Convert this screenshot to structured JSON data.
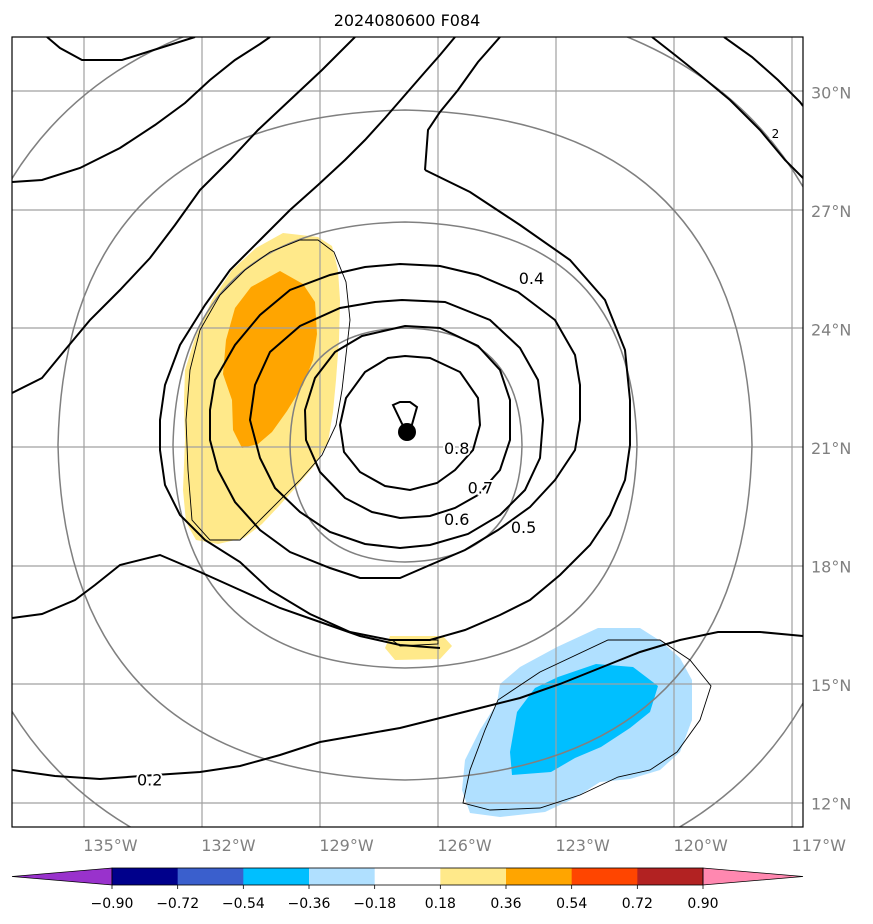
{
  "title": "2024080600 F084",
  "chart_data": {
    "type": "contour-map",
    "title": "2024080600 F084",
    "center_marker": {
      "lon": -126.0,
      "lat": 21.4
    },
    "lon_range": [
      -137.5,
      -117.4
    ],
    "lat_range": [
      11.4,
      31.4
    ],
    "lon_ticks": [
      {
        "value": -135,
        "label": "135°W"
      },
      {
        "value": -132,
        "label": "132°W"
      },
      {
        "value": -129,
        "label": "129°W"
      },
      {
        "value": -126,
        "label": "126°W"
      },
      {
        "value": -123,
        "label": "123°W"
      },
      {
        "value": -120,
        "label": "120°W"
      },
      {
        "value": -117,
        "label": "117°W"
      }
    ],
    "lat_ticks": [
      {
        "value": 12,
        "label": "12°N"
      },
      {
        "value": 15,
        "label": "15°N"
      },
      {
        "value": 18,
        "label": "18°N"
      },
      {
        "value": 21,
        "label": "21°N"
      },
      {
        "value": 24,
        "label": "24°N"
      },
      {
        "value": 27,
        "label": "27°N"
      },
      {
        "value": 30,
        "label": "30°N"
      }
    ],
    "contour_labels": [
      {
        "text": "0.8",
        "lon": -126.2,
        "lat": 21.0
      },
      {
        "text": "0.7",
        "lon": -125.6,
        "lat": 20.0
      },
      {
        "text": "0.6",
        "lon": -126.2,
        "lat": 19.2
      },
      {
        "text": "0.5",
        "lon": -124.5,
        "lat": 19.0
      },
      {
        "text": "0.4",
        "lon": -124.3,
        "lat": 25.3
      },
      {
        "text": "0.2",
        "lon": -134.0,
        "lat": 12.6
      },
      {
        "text": "2",
        "lon": -118.1,
        "lat": 29.0
      }
    ],
    "colorbar": {
      "colors": [
        "#9932cc",
        "#00008b",
        "#3a5fcd",
        "#00bfff",
        "#b0e0ff",
        "#ffffff",
        "#ffe98a",
        "#ffa500",
        "#ff4500",
        "#b22222",
        "#ff88b0"
      ],
      "tick_labels": [
        "−0.90",
        "−0.72",
        "−0.54",
        "−0.36",
        "−0.18",
        "0.18",
        "0.36",
        "0.54",
        "0.72",
        "0.90"
      ]
    }
  }
}
